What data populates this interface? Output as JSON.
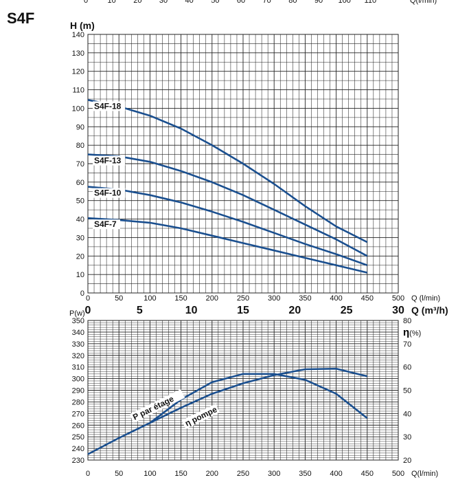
{
  "title": "S4F",
  "colors": {
    "curve": "#1a4f8f",
    "grid": "#222222"
  },
  "chart_data": [
    {
      "type": "line",
      "title": "",
      "ylabel": "H (m)",
      "x_unit_label": "Q (l/min)",
      "x2_unit_label": "Q (m³/h)",
      "top_unit_label": "Q(l/min)",
      "xlim": [
        0,
        500
      ],
      "ylim": [
        0,
        140
      ],
      "x_ticks": [
        0,
        50,
        100,
        150,
        200,
        250,
        300,
        350,
        400,
        450,
        500
      ],
      "y_ticks": [
        0,
        10,
        20,
        30,
        40,
        50,
        60,
        70,
        80,
        90,
        100,
        110,
        120,
        130,
        140
      ],
      "x2_ticks": [
        0,
        5,
        10,
        15,
        20,
        25,
        30
      ],
      "top_ticks": [
        0,
        10,
        20,
        30,
        40,
        50,
        60,
        70,
        80,
        90,
        100,
        110
      ],
      "grid": true,
      "series": [
        {
          "name": "S4F-18",
          "x": [
            0,
            50,
            100,
            150,
            200,
            250,
            300,
            350,
            400,
            450
          ],
          "y": [
            104.5,
            101,
            96,
            89,
            80,
            70,
            59,
            47,
            36,
            27.5
          ]
        },
        {
          "name": "S4F-13",
          "x": [
            0,
            50,
            100,
            150,
            200,
            250,
            300,
            350,
            400,
            450
          ],
          "y": [
            75,
            74,
            71,
            66,
            60,
            53,
            45,
            37,
            29,
            20
          ]
        },
        {
          "name": "S4F-10",
          "x": [
            0,
            50,
            100,
            150,
            200,
            250,
            300,
            350,
            400,
            450
          ],
          "y": [
            57.5,
            56,
            53,
            49,
            44,
            38.5,
            32.5,
            26.5,
            21,
            15
          ]
        },
        {
          "name": "S4F-7",
          "x": [
            0,
            50,
            100,
            150,
            200,
            250,
            300,
            350,
            400,
            450
          ],
          "y": [
            40.5,
            39.5,
            38,
            35,
            31,
            27,
            23,
            19,
            15,
            11
          ]
        }
      ]
    },
    {
      "type": "line",
      "title": "",
      "ylabel": "P(w)",
      "y2label_symbol": "η",
      "y2label_unit": "(%)",
      "x_unit_label": "Q(l/min)",
      "xlim": [
        0,
        500
      ],
      "ylim": [
        230,
        350
      ],
      "y2lim": [
        20,
        80
      ],
      "x_ticks": [
        0,
        50,
        100,
        150,
        200,
        250,
        300,
        350,
        400,
        450,
        500
      ],
      "y_ticks": [
        230,
        240,
        250,
        260,
        270,
        280,
        290,
        300,
        310,
        320,
        330,
        340,
        350
      ],
      "y2_ticks": [
        20,
        30,
        40,
        50,
        60,
        70,
        80
      ],
      "grid": true,
      "series": [
        {
          "name": "P par étage",
          "axis": "P",
          "x": [
            0,
            50,
            100,
            150,
            200,
            250,
            300,
            350,
            400,
            450
          ],
          "y": [
            235,
            249,
            262,
            275,
            287,
            296,
            303,
            308,
            308.5,
            302
          ]
        },
        {
          "name": "η pompe",
          "axis": "eta",
          "x": [
            100,
            150,
            200,
            250,
            300,
            350,
            400,
            450
          ],
          "y": [
            36,
            46,
            53.5,
            57,
            57,
            54.5,
            48.5,
            38
          ]
        }
      ]
    }
  ]
}
